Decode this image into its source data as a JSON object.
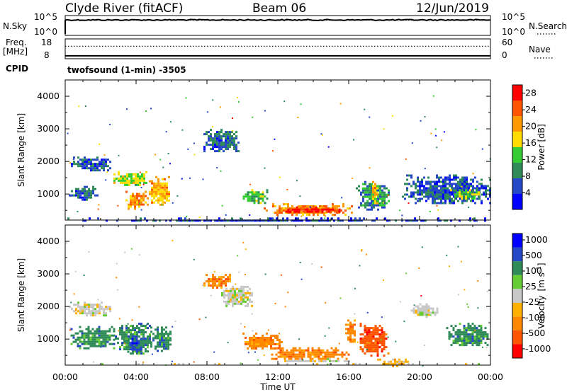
{
  "header": {
    "station": "Clyde River (fitACF)",
    "beam": "Beam 06",
    "date": "12/Jun/2019"
  },
  "nsky_panel": {
    "left_label": "N.Sky",
    "left_ticks": [
      "10^5",
      "10^0"
    ],
    "right_ticks": [
      "10^5",
      "10^0"
    ],
    "right_label": "N.Search",
    "right_legend_line": "dotted",
    "nsky_level_log10": 4.5,
    "nsearch_level_log10": 4.4
  },
  "freq_panel": {
    "left_label_line1": "Freq.",
    "left_label_line2": "[MHz]",
    "left_ticks": [
      "18",
      "8"
    ],
    "right_ticks": [
      "60",
      "0"
    ],
    "right_label": "Nave",
    "right_legend_line": "dotted",
    "freq_mhz": 8.5,
    "nave": 40
  },
  "cpid": {
    "label": "CPID",
    "value": "twofsound (1-min) -3505"
  },
  "chart_data": [
    {
      "type": "heatmap",
      "name": "power",
      "ylabel": "Slant Range [km]",
      "xlabel": "Time UT",
      "y_ticks": [
        "4000",
        "3000",
        "2000",
        "1000"
      ],
      "y_tick_values": [
        4000,
        3000,
        2000,
        1000
      ],
      "ylim": [
        200,
        4500
      ],
      "x_ticks": [
        "00:00",
        "04:00",
        "08:00",
        "12:00",
        "16:00",
        "20:00",
        "00:00"
      ],
      "xlim_hours": [
        0,
        24
      ],
      "colorbar": {
        "label": "Power [dB]",
        "ticks": [
          "28",
          "24",
          "20",
          "16",
          "12",
          "8",
          "4"
        ],
        "tick_values": [
          28,
          24,
          20,
          16,
          12,
          8,
          4
        ],
        "range": [
          0,
          30
        ],
        "colors": [
          "#0000ff",
          "#2646c8",
          "#2e8b57",
          "#33cc33",
          "#ffdd00",
          "#ff9900",
          "#ff5500",
          "#ff0000"
        ]
      },
      "features": [
        {
          "t0": 0.2,
          "t1": 2.6,
          "r0": 1750,
          "r1": 2150,
          "value": 6
        },
        {
          "t0": 0.2,
          "t1": 1.8,
          "r0": 850,
          "r1": 1250,
          "value": 7
        },
        {
          "t0": 2.6,
          "t1": 4.6,
          "r0": 1250,
          "r1": 1700,
          "value": 15
        },
        {
          "t0": 3.4,
          "t1": 4.5,
          "r0": 550,
          "r1": 1100,
          "value": 22
        },
        {
          "t0": 4.6,
          "t1": 5.9,
          "r0": 650,
          "r1": 1550,
          "value": 19
        },
        {
          "t0": 7.8,
          "t1": 9.8,
          "r0": 2300,
          "r1": 3000,
          "value": 7
        },
        {
          "t0": 9.9,
          "t1": 11.4,
          "r0": 750,
          "r1": 1150,
          "value": 13
        },
        {
          "t0": 11.2,
          "t1": 16.2,
          "r0": 380,
          "r1": 720,
          "value": 22
        },
        {
          "t0": 12.3,
          "t1": 15.6,
          "r0": 430,
          "r1": 620,
          "value": 28
        },
        {
          "t0": 16.4,
          "t1": 18.3,
          "r0": 500,
          "r1": 1400,
          "value": 9
        },
        {
          "t0": 17.2,
          "t1": 17.6,
          "r0": 700,
          "r1": 1400,
          "value": 17
        },
        {
          "t0": 19.0,
          "t1": 24.0,
          "r0": 700,
          "r1": 1600,
          "value": 6
        },
        {
          "t0": 21.6,
          "t1": 23.4,
          "r0": 850,
          "r1": 1150,
          "value": 13
        },
        {
          "t0": 0.0,
          "t1": 24.0,
          "r0": 200,
          "r1": 280,
          "value": 5
        }
      ]
    },
    {
      "type": "heatmap",
      "name": "velocity",
      "ylabel": "Slant Range [km]",
      "xlabel": "Time UT",
      "y_ticks": [
        "4000",
        "3000",
        "2000",
        "1000"
      ],
      "y_tick_values": [
        4000,
        3000,
        2000,
        1000
      ],
      "ylim": [
        200,
        4500
      ],
      "x_ticks": [
        "00:00",
        "04:00",
        "08:00",
        "12:00",
        "16:00",
        "20:00",
        "00:00"
      ],
      "xlim_hours": [
        0,
        24
      ],
      "colorbar": {
        "label_main": "Velocity",
        "label_unit": "[m s",
        "label_sup": "-1",
        "label_close": "]",
        "ticks": [
          "1000",
          "500",
          "100",
          "25",
          "-25",
          "-100",
          "-500",
          "-1000"
        ],
        "colors": [
          "#ff0000",
          "#ff5500",
          "#ff8800",
          "#ffb000",
          "#c8c8c8",
          "#66cc33",
          "#2e8b57",
          "#2646c8",
          "#0000ff"
        ]
      },
      "features": [
        {
          "t0": 0.2,
          "t1": 2.6,
          "r0": 1750,
          "r1": 2150,
          "color_index": 4
        },
        {
          "t0": 0.3,
          "t1": 2.8,
          "r0": 700,
          "r1": 1400,
          "color_index": 6
        },
        {
          "t0": 2.8,
          "t1": 4.8,
          "r0": 550,
          "r1": 1500,
          "color_index": 6
        },
        {
          "t0": 3.5,
          "t1": 4.3,
          "r0": 600,
          "r1": 1100,
          "color_index": 7
        },
        {
          "t0": 4.8,
          "t1": 6.0,
          "r0": 650,
          "r1": 1450,
          "color_index": 6
        },
        {
          "t0": 7.8,
          "t1": 9.3,
          "r0": 2600,
          "r1": 3000,
          "color_index": 2
        },
        {
          "t0": 8.8,
          "t1": 10.6,
          "r0": 2000,
          "r1": 2700,
          "color_index": 4
        },
        {
          "t0": 10.0,
          "t1": 12.2,
          "r0": 700,
          "r1": 1200,
          "color_index": 2
        },
        {
          "t0": 11.5,
          "t1": 16.0,
          "r0": 380,
          "r1": 750,
          "color_index": 2
        },
        {
          "t0": 12.0,
          "t1": 16.0,
          "r0": 300,
          "r1": 420,
          "color_index": 4
        },
        {
          "t0": 15.8,
          "t1": 16.4,
          "r0": 900,
          "r1": 1600,
          "color_index": 2
        },
        {
          "t0": 16.5,
          "t1": 18.2,
          "r0": 500,
          "r1": 1500,
          "color_index": 1
        },
        {
          "t0": 17.6,
          "t1": 19.4,
          "r0": 200,
          "r1": 400,
          "color_index": 3
        },
        {
          "t0": 19.5,
          "t1": 21.0,
          "r0": 1700,
          "r1": 2100,
          "color_index": 4
        },
        {
          "t0": 21.5,
          "t1": 24.0,
          "r0": 800,
          "r1": 1500,
          "color_index": 6
        },
        {
          "t0": 0.0,
          "t1": 24.0,
          "r0": 200,
          "r1": 260,
          "color_index": 4
        }
      ]
    }
  ]
}
